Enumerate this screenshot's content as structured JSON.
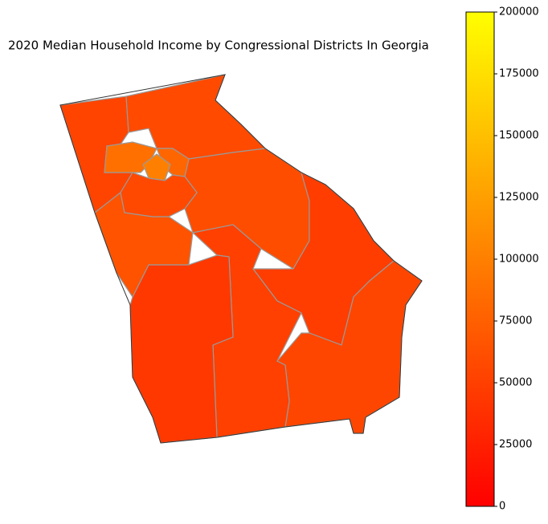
{
  "chart_data": {
    "type": "choropleth",
    "title": "2020 Median Household Income by Congressional Districts In Georgia",
    "values": [
      53000,
      58000,
      60000,
      48000,
      55000,
      50000,
      44000,
      65000,
      88000,
      80000,
      100000,
      57000
    ],
    "colormap": [
      "#ff0000",
      "#ffff00"
    ],
    "clim": [
      0,
      200000
    ],
    "cticks": [
      0,
      25000,
      50000,
      75000,
      100000,
      125000,
      150000,
      175000,
      200000
    ]
  }
}
